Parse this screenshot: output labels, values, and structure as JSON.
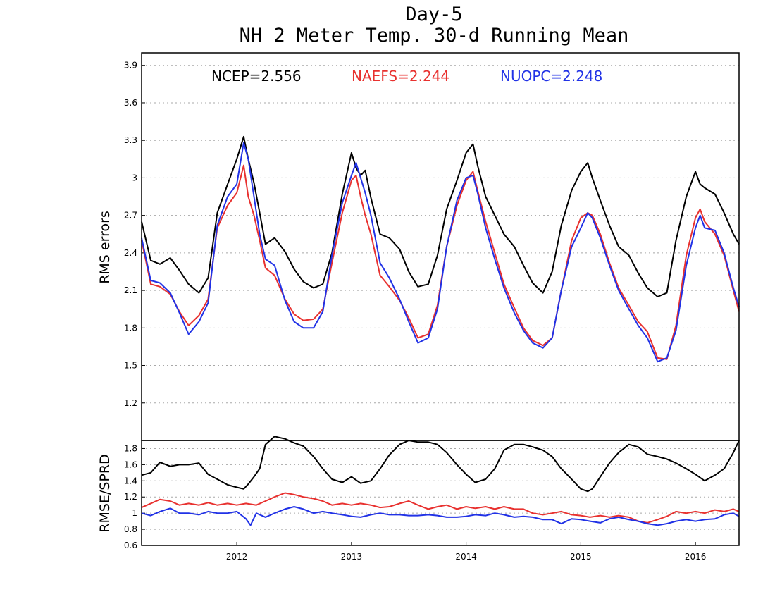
{
  "title_line1": "Day-5",
  "title_line2": "NH 2 Meter Temp. 30-d Running Mean",
  "colors": {
    "ncep": "#000000",
    "naefs": "#e8312f",
    "nuopc": "#2132e6"
  },
  "legend": {
    "ncep": "NCEP=2.556",
    "naefs": "NAEFS=2.244",
    "nuopc": "NUOPC=2.248"
  },
  "chart_data": [
    {
      "type": "line",
      "panel": "top",
      "ylabel": "RMS errors",
      "ylim": [
        0.9,
        4.0
      ],
      "xlim": [
        2011.17,
        2016.38
      ],
      "yticks": [
        "1.2",
        "1.5",
        "1.8",
        "2.1",
        "2.4",
        "2.7",
        "3",
        "3.3",
        "3.6",
        "3.9"
      ],
      "grid": true,
      "legend_position": "top",
      "series": [
        {
          "name": "NCEP",
          "color": "#000000",
          "x": [
            2011.17,
            2011.25,
            2011.33,
            2011.42,
            2011.5,
            2011.58,
            2011.67,
            2011.75,
            2011.83,
            2011.92,
            2012.0,
            2012.06,
            2012.1,
            2012.15,
            2012.2,
            2012.25,
            2012.33,
            2012.42,
            2012.5,
            2012.58,
            2012.67,
            2012.75,
            2012.83,
            2012.92,
            2013.0,
            2013.04,
            2013.08,
            2013.12,
            2013.17,
            2013.25,
            2013.33,
            2013.42,
            2013.5,
            2013.58,
            2013.67,
            2013.75,
            2013.83,
            2013.92,
            2014.0,
            2014.06,
            2014.1,
            2014.17,
            2014.25,
            2014.33,
            2014.42,
            2014.5,
            2014.58,
            2014.67,
            2014.75,
            2014.83,
            2014.92,
            2015.0,
            2015.06,
            2015.1,
            2015.17,
            2015.25,
            2015.33,
            2015.42,
            2015.5,
            2015.58,
            2015.67,
            2015.75,
            2015.83,
            2015.92,
            2016.0,
            2016.04,
            2016.08,
            2016.17,
            2016.25,
            2016.33,
            2016.38
          ],
          "y": [
            2.65,
            2.34,
            2.31,
            2.36,
            2.26,
            2.15,
            2.08,
            2.2,
            2.72,
            2.95,
            3.15,
            3.33,
            3.15,
            2.96,
            2.72,
            2.47,
            2.52,
            2.41,
            2.27,
            2.17,
            2.12,
            2.15,
            2.4,
            2.87,
            3.2,
            3.08,
            3.02,
            3.06,
            2.84,
            2.55,
            2.52,
            2.43,
            2.25,
            2.13,
            2.15,
            2.38,
            2.75,
            2.98,
            3.2,
            3.27,
            3.1,
            2.85,
            2.7,
            2.55,
            2.45,
            2.3,
            2.16,
            2.08,
            2.25,
            2.62,
            2.9,
            3.05,
            3.12,
            3.0,
            2.82,
            2.62,
            2.45,
            2.38,
            2.24,
            2.12,
            2.05,
            2.08,
            2.5,
            2.85,
            3.05,
            2.95,
            2.92,
            2.87,
            2.72,
            2.55,
            2.47
          ]
        },
        {
          "name": "NAEFS",
          "color": "#e8312f",
          "x": [
            2011.17,
            2011.25,
            2011.33,
            2011.42,
            2011.5,
            2011.58,
            2011.67,
            2011.75,
            2011.83,
            2011.92,
            2012.0,
            2012.06,
            2012.1,
            2012.15,
            2012.2,
            2012.25,
            2012.33,
            2012.42,
            2012.5,
            2012.58,
            2012.67,
            2012.75,
            2012.83,
            2012.92,
            2013.0,
            2013.04,
            2013.08,
            2013.12,
            2013.17,
            2013.25,
            2013.33,
            2013.42,
            2013.5,
            2013.58,
            2013.67,
            2013.75,
            2013.83,
            2013.92,
            2014.0,
            2014.06,
            2014.1,
            2014.17,
            2014.25,
            2014.33,
            2014.42,
            2014.5,
            2014.58,
            2014.67,
            2014.75,
            2014.83,
            2014.92,
            2015.0,
            2015.06,
            2015.1,
            2015.17,
            2015.25,
            2015.33,
            2015.42,
            2015.5,
            2015.58,
            2015.67,
            2015.75,
            2015.83,
            2015.92,
            2016.0,
            2016.04,
            2016.08,
            2016.17,
            2016.25,
            2016.33,
            2016.38
          ],
          "y": [
            2.5,
            2.15,
            2.13,
            2.07,
            1.93,
            1.82,
            1.9,
            2.03,
            2.6,
            2.78,
            2.88,
            3.1,
            2.85,
            2.7,
            2.5,
            2.28,
            2.22,
            2.03,
            1.91,
            1.86,
            1.87,
            1.95,
            2.32,
            2.72,
            2.98,
            3.02,
            2.85,
            2.7,
            2.55,
            2.22,
            2.13,
            2.02,
            1.88,
            1.72,
            1.75,
            1.98,
            2.45,
            2.78,
            2.98,
            3.05,
            2.9,
            2.65,
            2.4,
            2.15,
            1.96,
            1.8,
            1.7,
            1.66,
            1.72,
            2.1,
            2.5,
            2.68,
            2.72,
            2.7,
            2.55,
            2.32,
            2.12,
            1.98,
            1.85,
            1.77,
            1.56,
            1.55,
            1.82,
            2.38,
            2.68,
            2.75,
            2.65,
            2.55,
            2.38,
            2.1,
            1.93
          ]
        },
        {
          "name": "NUOPC",
          "color": "#2132e6",
          "x": [
            2011.17,
            2011.25,
            2011.33,
            2011.42,
            2011.5,
            2011.58,
            2011.67,
            2011.75,
            2011.83,
            2011.92,
            2012.0,
            2012.06,
            2012.1,
            2012.15,
            2012.2,
            2012.25,
            2012.33,
            2012.42,
            2012.5,
            2012.58,
            2012.67,
            2012.75,
            2012.83,
            2012.92,
            2013.0,
            2013.04,
            2013.08,
            2013.12,
            2013.17,
            2013.25,
            2013.33,
            2013.42,
            2013.5,
            2013.58,
            2013.67,
            2013.75,
            2013.83,
            2013.92,
            2014.0,
            2014.06,
            2014.1,
            2014.17,
            2014.25,
            2014.33,
            2014.42,
            2014.5,
            2014.58,
            2014.67,
            2014.75,
            2014.83,
            2014.92,
            2015.0,
            2015.06,
            2015.1,
            2015.17,
            2015.25,
            2015.33,
            2015.42,
            2015.5,
            2015.58,
            2015.67,
            2015.75,
            2015.83,
            2015.92,
            2016.0,
            2016.04,
            2016.08,
            2016.17,
            2016.25,
            2016.33,
            2016.38
          ],
          "y": [
            2.52,
            2.18,
            2.16,
            2.08,
            1.92,
            1.75,
            1.85,
            2.0,
            2.62,
            2.85,
            2.95,
            3.28,
            3.15,
            2.85,
            2.55,
            2.35,
            2.3,
            2.02,
            1.85,
            1.8,
            1.8,
            1.93,
            2.38,
            2.8,
            3.02,
            3.12,
            3.0,
            2.88,
            2.7,
            2.32,
            2.2,
            2.03,
            1.85,
            1.68,
            1.72,
            1.95,
            2.45,
            2.82,
            3.0,
            3.02,
            2.88,
            2.6,
            2.35,
            2.12,
            1.92,
            1.78,
            1.68,
            1.64,
            1.72,
            2.1,
            2.45,
            2.6,
            2.72,
            2.68,
            2.52,
            2.3,
            2.1,
            1.95,
            1.82,
            1.72,
            1.53,
            1.56,
            1.78,
            2.3,
            2.6,
            2.7,
            2.6,
            2.58,
            2.4,
            2.12,
            1.97
          ]
        }
      ]
    },
    {
      "type": "line",
      "panel": "bottom",
      "ylabel": "RMSE/SPRD",
      "ylim": [
        0.6,
        1.9
      ],
      "xlim": [
        2011.17,
        2016.38
      ],
      "yticks": [
        "0.6",
        "0.8",
        "1",
        "1.2",
        "1.4",
        "1.6",
        "1.8"
      ],
      "xticks": [
        "2012",
        "2013",
        "2014",
        "2015",
        "2016"
      ],
      "grid": true,
      "series": [
        {
          "name": "NCEP",
          "color": "#000000",
          "x": [
            2011.17,
            2011.25,
            2011.33,
            2011.42,
            2011.5,
            2011.58,
            2011.67,
            2011.75,
            2011.83,
            2011.92,
            2012.0,
            2012.06,
            2012.1,
            2012.15,
            2012.2,
            2012.25,
            2012.33,
            2012.42,
            2012.5,
            2012.58,
            2012.67,
            2012.75,
            2012.83,
            2012.92,
            2013.0,
            2013.08,
            2013.17,
            2013.25,
            2013.33,
            2013.42,
            2013.5,
            2013.58,
            2013.67,
            2013.75,
            2013.83,
            2013.92,
            2014.0,
            2014.08,
            2014.17,
            2014.25,
            2014.33,
            2014.42,
            2014.5,
            2014.58,
            2014.67,
            2014.75,
            2014.83,
            2014.92,
            2015.0,
            2015.06,
            2015.1,
            2015.17,
            2015.25,
            2015.33,
            2015.42,
            2015.5,
            2015.58,
            2015.67,
            2015.75,
            2015.83,
            2015.92,
            2016.0,
            2016.08,
            2016.17,
            2016.25,
            2016.33,
            2016.38
          ],
          "y": [
            1.47,
            1.5,
            1.63,
            1.58,
            1.6,
            1.6,
            1.62,
            1.48,
            1.42,
            1.35,
            1.32,
            1.3,
            1.36,
            1.45,
            1.55,
            1.85,
            1.95,
            1.92,
            1.87,
            1.83,
            1.7,
            1.55,
            1.42,
            1.38,
            1.45,
            1.37,
            1.4,
            1.55,
            1.72,
            1.85,
            1.9,
            1.88,
            1.88,
            1.85,
            1.75,
            1.6,
            1.48,
            1.38,
            1.42,
            1.55,
            1.78,
            1.85,
            1.85,
            1.82,
            1.78,
            1.7,
            1.55,
            1.42,
            1.3,
            1.27,
            1.3,
            1.45,
            1.62,
            1.75,
            1.85,
            1.82,
            1.73,
            1.7,
            1.67,
            1.62,
            1.55,
            1.48,
            1.4,
            1.47,
            1.55,
            1.75,
            1.9
          ]
        },
        {
          "name": "NAEFS",
          "color": "#e8312f",
          "x": [
            2011.17,
            2011.25,
            2011.33,
            2011.42,
            2011.5,
            2011.58,
            2011.67,
            2011.75,
            2011.83,
            2011.92,
            2012.0,
            2012.08,
            2012.17,
            2012.25,
            2012.33,
            2012.42,
            2012.5,
            2012.58,
            2012.67,
            2012.75,
            2012.83,
            2012.92,
            2013.0,
            2013.08,
            2013.17,
            2013.25,
            2013.33,
            2013.42,
            2013.5,
            2013.58,
            2013.67,
            2013.75,
            2013.83,
            2013.92,
            2014.0,
            2014.08,
            2014.17,
            2014.25,
            2014.33,
            2014.42,
            2014.5,
            2014.58,
            2014.67,
            2014.75,
            2014.83,
            2014.92,
            2015.0,
            2015.08,
            2015.17,
            2015.25,
            2015.33,
            2015.42,
            2015.5,
            2015.58,
            2015.67,
            2015.75,
            2015.83,
            2015.92,
            2016.0,
            2016.08,
            2016.17,
            2016.25,
            2016.33,
            2016.38
          ],
          "y": [
            1.07,
            1.12,
            1.17,
            1.15,
            1.1,
            1.12,
            1.1,
            1.13,
            1.1,
            1.12,
            1.1,
            1.12,
            1.1,
            1.15,
            1.2,
            1.25,
            1.23,
            1.2,
            1.18,
            1.15,
            1.1,
            1.12,
            1.1,
            1.12,
            1.1,
            1.07,
            1.08,
            1.12,
            1.15,
            1.1,
            1.05,
            1.08,
            1.1,
            1.05,
            1.08,
            1.06,
            1.08,
            1.05,
            1.08,
            1.05,
            1.05,
            1.0,
            0.98,
            1.0,
            1.02,
            0.98,
            0.97,
            0.95,
            0.97,
            0.95,
            0.97,
            0.95,
            0.9,
            0.88,
            0.92,
            0.96,
            1.02,
            1.0,
            1.02,
            1.0,
            1.04,
            1.02,
            1.05,
            1.02
          ]
        },
        {
          "name": "NUOPC",
          "color": "#2132e6",
          "x": [
            2011.17,
            2011.25,
            2011.33,
            2011.42,
            2011.5,
            2011.58,
            2011.67,
            2011.75,
            2011.83,
            2011.92,
            2012.0,
            2012.08,
            2012.12,
            2012.17,
            2012.25,
            2012.33,
            2012.42,
            2012.5,
            2012.58,
            2012.67,
            2012.75,
            2012.83,
            2012.92,
            2013.0,
            2013.08,
            2013.17,
            2013.25,
            2013.33,
            2013.42,
            2013.5,
            2013.58,
            2013.67,
            2013.75,
            2013.83,
            2013.92,
            2014.0,
            2014.08,
            2014.17,
            2014.25,
            2014.33,
            2014.42,
            2014.5,
            2014.58,
            2014.67,
            2014.75,
            2014.83,
            2014.92,
            2015.0,
            2015.08,
            2015.17,
            2015.25,
            2015.33,
            2015.42,
            2015.5,
            2015.58,
            2015.67,
            2015.75,
            2015.83,
            2015.92,
            2016.0,
            2016.08,
            2016.17,
            2016.25,
            2016.33,
            2016.38
          ],
          "y": [
            1.0,
            0.97,
            1.02,
            1.06,
            1.0,
            1.0,
            0.98,
            1.02,
            1.0,
            1.0,
            1.02,
            0.93,
            0.85,
            1.0,
            0.95,
            1.0,
            1.05,
            1.08,
            1.05,
            1.0,
            1.02,
            1.0,
            0.98,
            0.96,
            0.95,
            0.98,
            1.0,
            0.98,
            0.98,
            0.97,
            0.97,
            0.98,
            0.97,
            0.95,
            0.95,
            0.96,
            0.98,
            0.97,
            1.0,
            0.98,
            0.95,
            0.96,
            0.95,
            0.92,
            0.92,
            0.87,
            0.93,
            0.92,
            0.9,
            0.88,
            0.93,
            0.95,
            0.92,
            0.9,
            0.87,
            0.85,
            0.87,
            0.9,
            0.92,
            0.9,
            0.92,
            0.93,
            0.98,
            1.0,
            0.96
          ]
        }
      ]
    }
  ]
}
